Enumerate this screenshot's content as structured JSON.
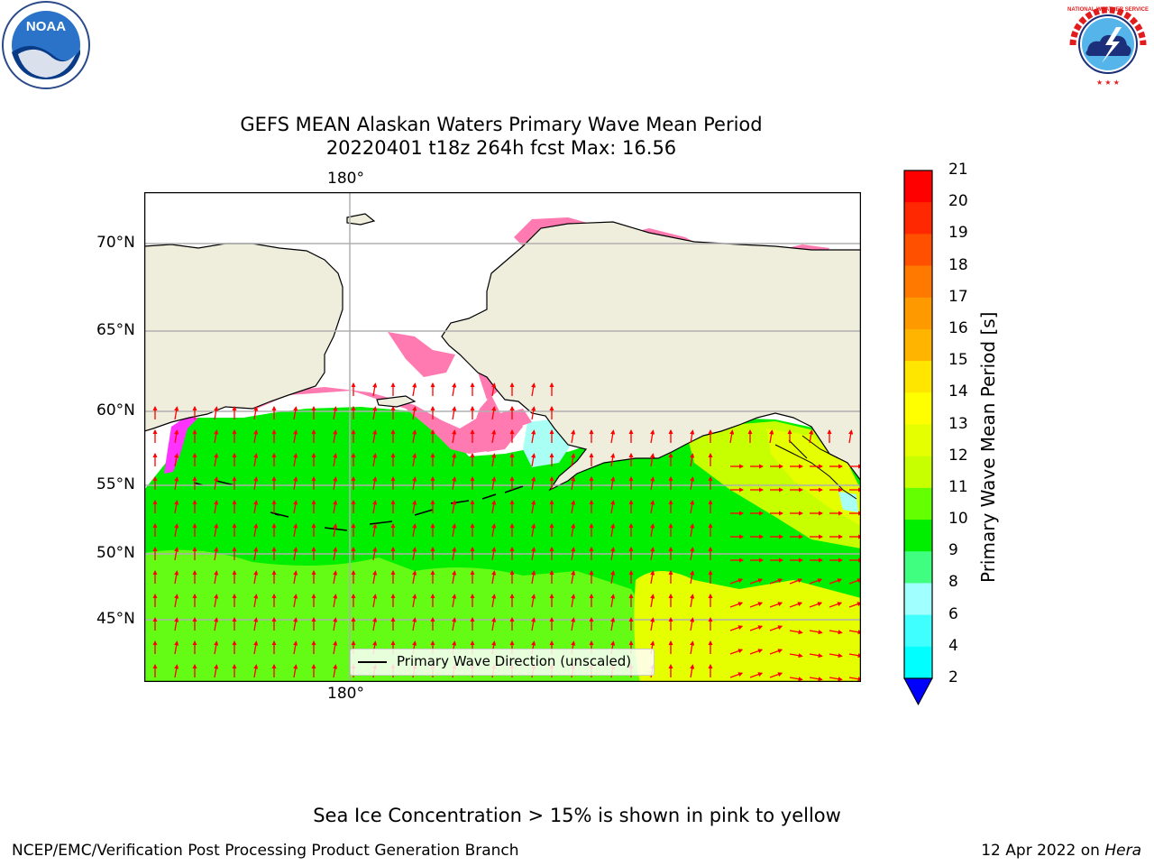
{
  "header": {
    "title_line1": "GEFS MEAN Alaskan Waters Primary Wave Mean Period",
    "title_line2": "20220401 t18z 264h fcst   Max: 16.56",
    "left_logo": "noaa-logo",
    "right_logo": "nws-logo",
    "noaa_logo_text": "NOAA",
    "nws_logo_text": "NATIONAL WEATHER SERVICE"
  },
  "map": {
    "lat_labels": [
      "70°N",
      "65°N",
      "60°N",
      "55°N",
      "50°N",
      "45°N"
    ],
    "lon_label_top": "180°",
    "lon_label_bottom": "180°",
    "legend_label": "Primary Wave Direction (unscaled)",
    "colors": {
      "land": "#efeddc",
      "ocean_main": "#00ee00",
      "ocean_light": "#66ff00",
      "ocean_yellow": "#e6ff00",
      "ice_pink": "#ff7ab0",
      "ice_magenta": "#ff33ff",
      "cyan": "#aafff5",
      "arrow": "#ff0000"
    }
  },
  "colorbar": {
    "label": "Primary Wave Mean Period [s]",
    "ticks": [
      "21",
      "20",
      "19",
      "18",
      "17",
      "16",
      "15",
      "14",
      "13",
      "12",
      "11",
      "10",
      "9",
      "8",
      "6",
      "4",
      "2"
    ],
    "colors": [
      "#ff0000",
      "#ff2800",
      "#ff5000",
      "#ff7800",
      "#ff9900",
      "#ffb400",
      "#ffe600",
      "#ffff00",
      "#e6ff00",
      "#c8ff00",
      "#64ff00",
      "#00ee00",
      "#40ff80",
      "#a0ffff",
      "#40ffff",
      "#00ffff",
      "#00e0ff",
      "#0070ff",
      "#0000ff"
    ]
  },
  "footer": {
    "note": "Sea Ice Concentration > 15% is shown in pink to yellow",
    "left": "NCEP/EMC/Verification Post Processing Product Generation Branch",
    "right_prefix": "12 Apr 2022 on ",
    "right_host": "Hera"
  }
}
